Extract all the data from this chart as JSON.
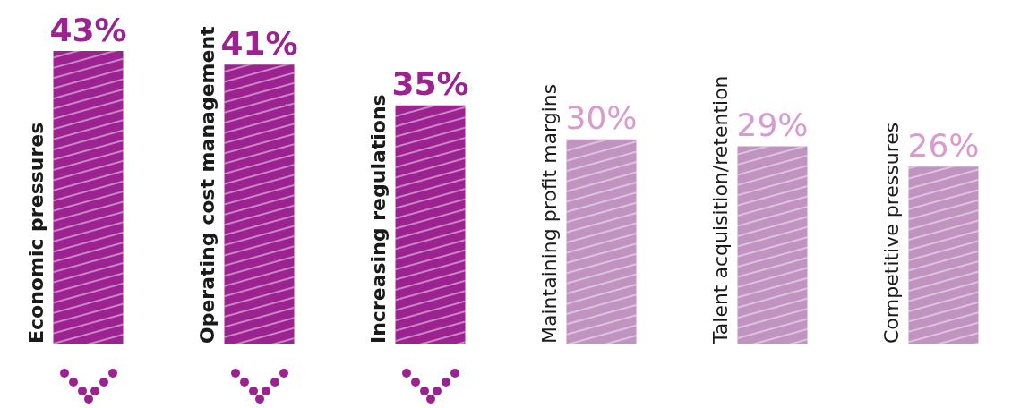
{
  "chart_data": {
    "type": "bar",
    "categories": [
      "Economic pressures",
      "Operating cost management",
      "Increasing regulations",
      "Maintaining profit margins",
      "Talent acquisition/retention",
      "Competitive pressures"
    ],
    "values": [
      43,
      41,
      35,
      30,
      29,
      26
    ],
    "value_labels": [
      "43%",
      "41%",
      "35%",
      "30%",
      "29%",
      "26%"
    ],
    "colors": [
      "#9b2290",
      "#9b2290",
      "#9b2290",
      "#c193c0",
      "#c193c0",
      "#c193c0"
    ]
  }
}
